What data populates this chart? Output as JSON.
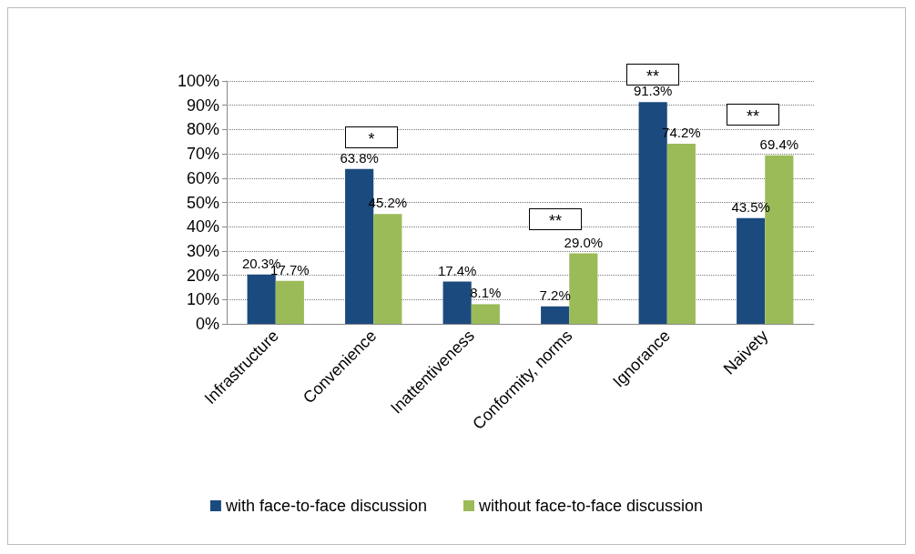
{
  "chart_data": {
    "type": "bar",
    "categories": [
      "Infrastructure",
      "Convenience",
      "Inattentiveness",
      "Conformity, norms",
      "Ignorance",
      "Naivety"
    ],
    "series": [
      {
        "name": "with face-to-face discussion",
        "color": "#1b4a7e",
        "values": [
          20.3,
          63.8,
          17.4,
          7.2,
          91.3,
          43.5
        ],
        "value_labels": [
          "20.3%",
          "63.8%",
          "17.4%",
          "7.2%",
          "91.3%",
          "43.5%"
        ]
      },
      {
        "name": "without face-to-face discussion",
        "color": "#9bbb59",
        "values": [
          17.7,
          45.2,
          8.1,
          29.0,
          74.2,
          69.4
        ],
        "value_labels": [
          "17.7%",
          "45.2%",
          "8.1%",
          "29.0%",
          "74.2%",
          "69.4%"
        ]
      }
    ],
    "ylim": [
      0,
      100
    ],
    "yticks": [
      {
        "value": 0,
        "label": "0%"
      },
      {
        "value": 10,
        "label": "10%"
      },
      {
        "value": 20,
        "label": "20%"
      },
      {
        "value": 30,
        "label": "30%"
      },
      {
        "value": 40,
        "label": "40%"
      },
      {
        "value": 50,
        "label": "50%"
      },
      {
        "value": 60,
        "label": "60%"
      },
      {
        "value": 70,
        "label": "70%"
      },
      {
        "value": 80,
        "label": "80%"
      },
      {
        "value": 90,
        "label": "90%"
      },
      {
        "value": 100,
        "label": "100%"
      }
    ],
    "grid": "y",
    "legend": "bottom",
    "annotations": [
      "*",
      "**",
      "**",
      "**"
    ]
  }
}
